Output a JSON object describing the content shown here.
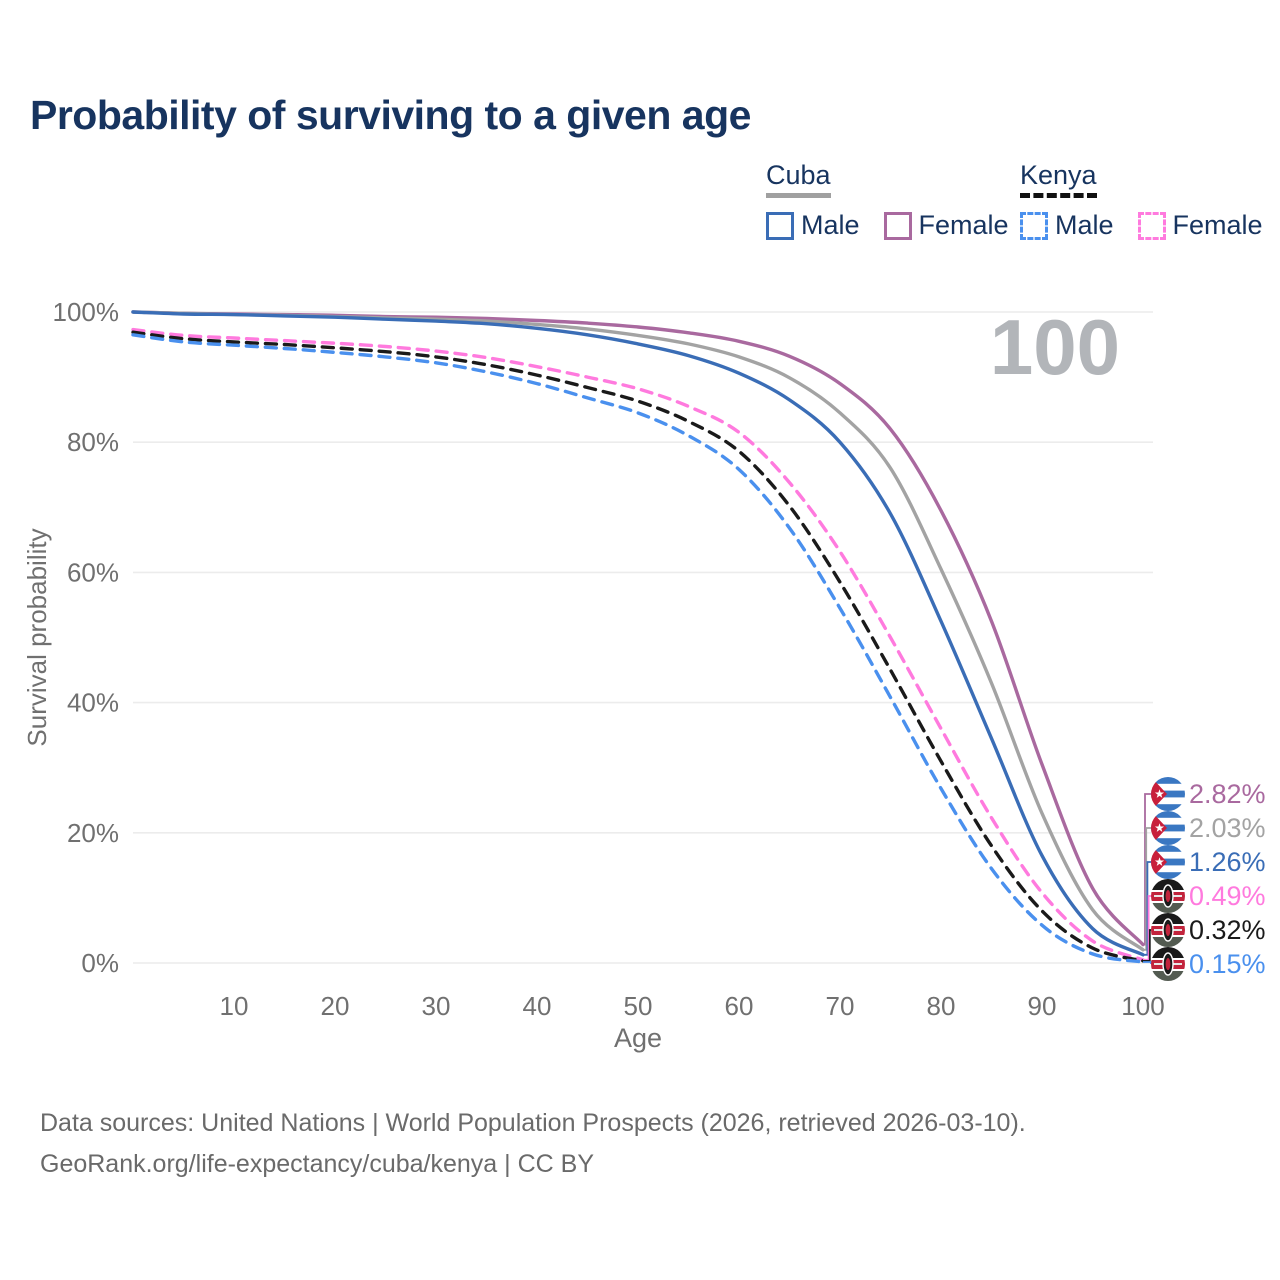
{
  "title": "Probability of surviving to a given age",
  "watermark": "100",
  "legend": {
    "groups": [
      {
        "name": "Cuba",
        "line_style": "solid",
        "underline_color": "#a0a0a0",
        "items": [
          {
            "label": "Male",
            "color": "#3a6db6"
          },
          {
            "label": "Female",
            "color": "#a9699f"
          }
        ]
      },
      {
        "name": "Kenya",
        "line_style": "dashed",
        "underline_color": "#111111",
        "items": [
          {
            "label": "Male",
            "color": "#4a90ee"
          },
          {
            "label": "Female",
            "color": "#ff7ade"
          }
        ]
      }
    ]
  },
  "chart_data": {
    "type": "line",
    "title": "Probability of surviving to a given age",
    "xlabel": "Age",
    "ylabel": "Survival probability",
    "xlim": [
      0,
      100
    ],
    "ylim": [
      0,
      100
    ],
    "grid": "horizontal",
    "xticks": [
      10,
      20,
      30,
      40,
      50,
      60,
      70,
      80,
      90,
      100
    ],
    "yticks": [
      {
        "value": 0,
        "label": "0%"
      },
      {
        "value": 20,
        "label": "20%"
      },
      {
        "value": 40,
        "label": "40%"
      },
      {
        "value": 60,
        "label": "60%"
      },
      {
        "value": 80,
        "label": "80%"
      },
      {
        "value": 100,
        "label": "100%"
      }
    ],
    "x": [
      0,
      5,
      10,
      15,
      20,
      25,
      30,
      35,
      40,
      45,
      50,
      55,
      60,
      65,
      70,
      75,
      80,
      85,
      90,
      95,
      100
    ],
    "series": [
      {
        "key": "cuba_female",
        "name": "Cuba Female",
        "country": "Cuba",
        "sex": "Female",
        "color": "#a9699f",
        "dash": false,
        "values": [
          100,
          99.8,
          99.7,
          99.6,
          99.5,
          99.3,
          99.2,
          99.0,
          98.7,
          98.3,
          97.7,
          96.8,
          95.5,
          93.2,
          89.0,
          82.0,
          69.5,
          52.5,
          30.5,
          11.5,
          2.82
        ]
      },
      {
        "key": "cuba_total",
        "name": "Cuba Total",
        "country": "Cuba",
        "sex": "Both",
        "color": "#a3a3a3",
        "dash": false,
        "values": [
          100,
          99.8,
          99.6,
          99.5,
          99.3,
          99.1,
          98.9,
          98.6,
          98.1,
          97.4,
          96.4,
          95.1,
          93.1,
          89.9,
          84.5,
          76.0,
          60.5,
          43.0,
          23.0,
          8.2,
          2.03
        ]
      },
      {
        "key": "cuba_male",
        "name": "Cuba Male",
        "country": "Cuba",
        "sex": "Male",
        "color": "#3a6db6",
        "dash": false,
        "values": [
          100,
          99.7,
          99.6,
          99.4,
          99.2,
          98.9,
          98.6,
          98.2,
          97.5,
          96.5,
          95.1,
          93.3,
          90.6,
          86.5,
          80.0,
          69.0,
          52.5,
          34.5,
          16.5,
          5.3,
          1.26
        ]
      },
      {
        "key": "kenya_female",
        "name": "Kenya Female",
        "country": "Kenya",
        "sex": "Female",
        "color": "#ff7ade",
        "dash": true,
        "values": [
          97.3,
          96.4,
          96.0,
          95.6,
          95.2,
          94.7,
          94.0,
          93.0,
          91.6,
          90.0,
          88.2,
          85.5,
          81.5,
          73.8,
          63.2,
          50.0,
          36.0,
          22.3,
          10.8,
          3.4,
          0.49
        ]
      },
      {
        "key": "kenya_total",
        "name": "Kenya Total",
        "country": "Kenya",
        "sex": "Both",
        "color": "#1a1a1a",
        "dash": true,
        "values": [
          96.9,
          95.9,
          95.4,
          95.0,
          94.5,
          93.9,
          93.1,
          91.9,
          90.3,
          88.4,
          86.3,
          83.2,
          78.6,
          70.2,
          58.5,
          45.0,
          31.0,
          18.0,
          8.0,
          2.3,
          0.32
        ]
      },
      {
        "key": "kenya_male",
        "name": "Kenya Male",
        "country": "Kenya",
        "sex": "Male",
        "color": "#4a90ee",
        "dash": true,
        "values": [
          96.5,
          95.4,
          94.9,
          94.4,
          93.8,
          93.1,
          92.2,
          90.8,
          89.0,
          86.8,
          84.5,
          81.0,
          75.8,
          66.8,
          54.5,
          40.8,
          26.8,
          14.5,
          5.8,
          1.4,
          0.15
        ]
      }
    ],
    "end_labels": [
      {
        "series_key": "cuba_female",
        "label": "2.82%",
        "color": "#a9699f",
        "flag": "cuba"
      },
      {
        "series_key": "cuba_total",
        "label": "2.03%",
        "color": "#a3a3a3",
        "flag": "cuba"
      },
      {
        "series_key": "cuba_male",
        "label": "1.26%",
        "color": "#3a6db6",
        "flag": "cuba"
      },
      {
        "series_key": "kenya_female",
        "label": "0.49%",
        "color": "#ff7ade",
        "flag": "kenya"
      },
      {
        "series_key": "kenya_total",
        "label": "0.32%",
        "color": "#1a1a1a",
        "flag": "kenya"
      },
      {
        "series_key": "kenya_male",
        "label": "0.15%",
        "color": "#4a90ee",
        "flag": "kenya"
      }
    ],
    "annotations": {
      "age_counter": "100"
    }
  },
  "sources": {
    "line1": "Data sources: United Nations | World Population Prospects (2026, retrieved 2026-03-10).",
    "line2": "GeoRank.org/life-expectancy/cuba/kenya | CC BY"
  }
}
